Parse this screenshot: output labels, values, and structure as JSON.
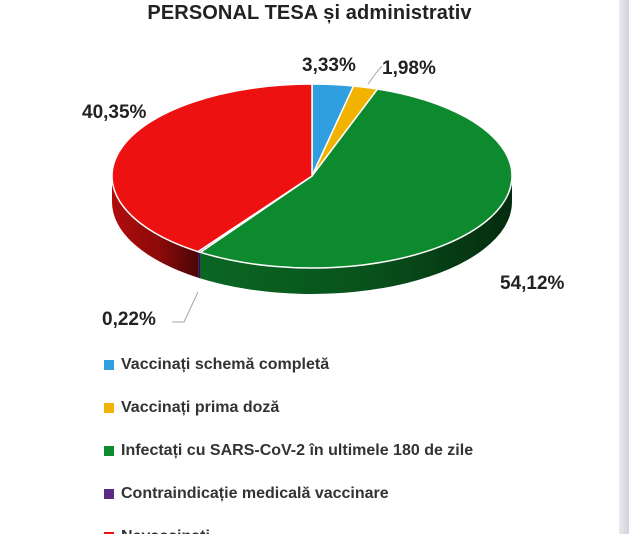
{
  "chart_data": {
    "type": "pie",
    "title": "PERSONAL TESA și administrativ",
    "legend_position": "bottom",
    "style": "3d",
    "slices": [
      {
        "label": "Vaccinați schemă completă",
        "value": 3.33,
        "display": "3,33%",
        "color": "#2f9fe0"
      },
      {
        "label": "Vaccinați prima doză",
        "value": 1.98,
        "display": "1,98%",
        "color": "#f2b200"
      },
      {
        "label": "Infectați cu SARS-CoV-2 în ultimele 180 de zile",
        "value": 54.12,
        "display": "54,12%",
        "color": "#0e8a2e"
      },
      {
        "label": "Contraindicație medicală vaccinare",
        "value": 0.22,
        "display": "0,22%",
        "color": "#5b2a86"
      },
      {
        "label": "Nevaccinați",
        "value": 40.35,
        "display": "40,35%",
        "color": "#ee1111"
      }
    ]
  }
}
